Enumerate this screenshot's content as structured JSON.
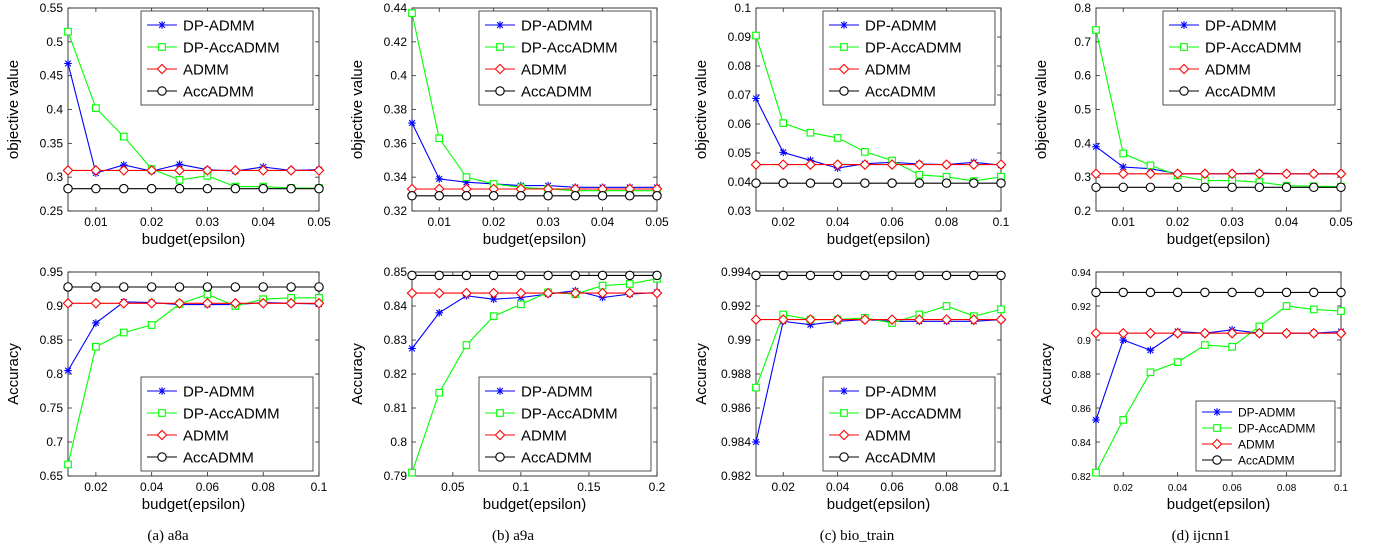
{
  "colors": {
    "DP-ADMM": "#0000ff",
    "DP-AccADMM": "#00ff00",
    "ADMM": "#ff0000",
    "AccADMM": "#000000"
  },
  "markers": {
    "DP-ADMM": "asterisk",
    "DP-AccADMM": "square",
    "ADMM": "diamond",
    "AccADMM": "circle"
  },
  "captions": [
    "(a)  a8a",
    "(b)  a9a",
    "(c)  bio_train",
    "(d)  ijcnn1"
  ],
  "chart_data": [
    {
      "type": "line",
      "title": "",
      "xlabel": "budget(epsilon)",
      "ylabel": "objective value",
      "xlim": [
        0.005,
        0.05
      ],
      "ylim": [
        0.25,
        0.55
      ],
      "xticks": [
        0.01,
        0.02,
        0.03,
        0.04,
        0.05
      ],
      "xtick_labels": [
        "0.01",
        "0.02",
        "0.03",
        "0.04",
        "0.05"
      ],
      "yticks": [
        0.25,
        0.3,
        0.35,
        0.4,
        0.45,
        0.5,
        0.55
      ],
      "ytick_labels": [
        "0.25",
        "0.3",
        "0.35",
        "0.4",
        "0.45",
        "0.5",
        "0.55"
      ],
      "legend": "top-right",
      "legend_font": 15,
      "grid": false,
      "x": [
        0.005,
        0.01,
        0.015,
        0.02,
        0.025,
        0.03,
        0.035,
        0.04,
        0.045,
        0.05
      ],
      "series": [
        {
          "name": "DP-ADMM",
          "values": [
            0.468,
            0.306,
            0.318,
            0.309,
            0.319,
            0.311,
            0.309,
            0.315,
            0.31,
            0.311
          ]
        },
        {
          "name": "DP-AccADMM",
          "values": [
            0.515,
            0.402,
            0.36,
            0.312,
            0.296,
            0.302,
            0.286,
            0.286,
            0.284,
            0.284
          ]
        },
        {
          "name": "ADMM",
          "values": [
            0.31,
            0.31,
            0.31,
            0.31,
            0.31,
            0.31,
            0.31,
            0.31,
            0.31,
            0.31
          ]
        },
        {
          "name": "AccADMM",
          "values": [
            0.283,
            0.283,
            0.283,
            0.283,
            0.283,
            0.283,
            0.283,
            0.283,
            0.283,
            0.283
          ]
        }
      ]
    },
    {
      "type": "line",
      "title": "",
      "xlabel": "budget(epsilon)",
      "ylabel": "objective value",
      "xlim": [
        0.005,
        0.05
      ],
      "ylim": [
        0.32,
        0.44
      ],
      "xticks": [
        0.01,
        0.02,
        0.03,
        0.04,
        0.05
      ],
      "xtick_labels": [
        "0.01",
        "0.02",
        "0.03",
        "0.04",
        "0.05"
      ],
      "yticks": [
        0.32,
        0.34,
        0.36,
        0.38,
        0.4,
        0.42,
        0.44
      ],
      "ytick_labels": [
        "0.32",
        "0.34",
        "0.36",
        "0.38",
        "0.4",
        "0.42",
        "0.44"
      ],
      "legend": "top-right",
      "legend_font": 15,
      "grid": false,
      "x": [
        0.005,
        0.01,
        0.015,
        0.02,
        0.025,
        0.03,
        0.035,
        0.04,
        0.045,
        0.05
      ],
      "series": [
        {
          "name": "DP-ADMM",
          "values": [
            0.372,
            0.339,
            0.337,
            0.336,
            0.335,
            0.335,
            0.334,
            0.334,
            0.334,
            0.334
          ]
        },
        {
          "name": "DP-AccADMM",
          "values": [
            0.437,
            0.363,
            0.34,
            0.336,
            0.334,
            0.333,
            0.332,
            0.332,
            0.332,
            0.332
          ]
        },
        {
          "name": "ADMM",
          "values": [
            0.333,
            0.333,
            0.333,
            0.333,
            0.333,
            0.333,
            0.333,
            0.333,
            0.333,
            0.333
          ]
        },
        {
          "name": "AccADMM",
          "values": [
            0.329,
            0.329,
            0.329,
            0.329,
            0.329,
            0.329,
            0.329,
            0.329,
            0.329,
            0.329
          ]
        }
      ]
    },
    {
      "type": "line",
      "title": "",
      "xlabel": "budget(epsilon)",
      "ylabel": "objective value",
      "xlim": [
        0.01,
        0.1
      ],
      "ylim": [
        0.03,
        0.1
      ],
      "xticks": [
        0.02,
        0.04,
        0.06,
        0.08,
        0.1
      ],
      "xtick_labels": [
        "0.02",
        "0.04",
        "0.06",
        "0.08",
        "0.1"
      ],
      "yticks": [
        0.03,
        0.04,
        0.05,
        0.06,
        0.07,
        0.08,
        0.09,
        0.1
      ],
      "ytick_labels": [
        "0.03",
        "0.04",
        "0.05",
        "0.06",
        "0.07",
        "0.08",
        "0.09",
        "0.1"
      ],
      "legend": "top-right",
      "legend_font": 15,
      "grid": false,
      "x": [
        0.01,
        0.02,
        0.03,
        0.04,
        0.05,
        0.06,
        0.07,
        0.08,
        0.09,
        0.1
      ],
      "series": [
        {
          "name": "DP-ADMM",
          "values": [
            0.0688,
            0.0502,
            0.0475,
            0.0448,
            0.0463,
            0.0468,
            0.0462,
            0.046,
            0.0468,
            0.0458
          ]
        },
        {
          "name": "DP-AccADMM",
          "values": [
            0.0905,
            0.0603,
            0.057,
            0.0552,
            0.0504,
            0.0474,
            0.0425,
            0.0418,
            0.0403,
            0.0418
          ]
        },
        {
          "name": "ADMM",
          "values": [
            0.046,
            0.046,
            0.046,
            0.046,
            0.046,
            0.046,
            0.046,
            0.046,
            0.046,
            0.046
          ]
        },
        {
          "name": "AccADMM",
          "values": [
            0.0396,
            0.0396,
            0.0396,
            0.0396,
            0.0396,
            0.0396,
            0.0396,
            0.0396,
            0.0396,
            0.0396
          ]
        }
      ]
    },
    {
      "type": "line",
      "title": "",
      "xlabel": "budget(epsilon)",
      "ylabel": "objective value",
      "xlim": [
        0.005,
        0.05
      ],
      "ylim": [
        0.2,
        0.8
      ],
      "xticks": [
        0.01,
        0.02,
        0.03,
        0.04,
        0.05
      ],
      "xtick_labels": [
        "0.01",
        "0.02",
        "0.03",
        "0.04",
        "0.05"
      ],
      "yticks": [
        0.2,
        0.3,
        0.4,
        0.5,
        0.6,
        0.7,
        0.8
      ],
      "ytick_labels": [
        "0.2",
        "0.3",
        "0.4",
        "0.5",
        "0.6",
        "0.7",
        "0.8"
      ],
      "legend": "top-right",
      "legend_font": 15,
      "grid": false,
      "x": [
        0.005,
        0.01,
        0.015,
        0.02,
        0.025,
        0.03,
        0.035,
        0.04,
        0.045,
        0.05
      ],
      "series": [
        {
          "name": "DP-ADMM",
          "values": [
            0.39,
            0.33,
            0.325,
            0.31,
            0.31,
            0.31,
            0.312,
            0.31,
            0.31,
            0.31
          ]
        },
        {
          "name": "DP-AccADMM",
          "values": [
            0.735,
            0.37,
            0.335,
            0.305,
            0.29,
            0.29,
            0.285,
            0.275,
            0.273,
            0.272
          ]
        },
        {
          "name": "ADMM",
          "values": [
            0.31,
            0.31,
            0.31,
            0.31,
            0.31,
            0.31,
            0.31,
            0.31,
            0.31,
            0.31
          ]
        },
        {
          "name": "AccADMM",
          "values": [
            0.27,
            0.27,
            0.27,
            0.27,
            0.27,
            0.27,
            0.27,
            0.27,
            0.27,
            0.27
          ]
        }
      ]
    },
    {
      "type": "line",
      "title": "",
      "xlabel": "budget(epsilon)",
      "ylabel": "Accuracy",
      "xlim": [
        0.01,
        0.1
      ],
      "ylim": [
        0.65,
        0.95
      ],
      "xticks": [
        0.02,
        0.04,
        0.06,
        0.08,
        0.1
      ],
      "xtick_labels": [
        "0.02",
        "0.04",
        "0.06",
        "0.08",
        "0.1"
      ],
      "yticks": [
        0.65,
        0.7,
        0.75,
        0.8,
        0.85,
        0.9,
        0.95
      ],
      "ytick_labels": [
        "0.65",
        "0.7",
        "0.75",
        "0.8",
        "0.85",
        "0.9",
        "0.95"
      ],
      "legend": "bottom-right",
      "legend_font": 15,
      "grid": false,
      "x": [
        0.01,
        0.02,
        0.03,
        0.04,
        0.05,
        0.06,
        0.07,
        0.08,
        0.09,
        0.1
      ],
      "series": [
        {
          "name": "DP-ADMM",
          "values": [
            0.805,
            0.875,
            0.906,
            0.905,
            0.902,
            0.902,
            0.902,
            0.905,
            0.904,
            0.903
          ]
        },
        {
          "name": "DP-AccADMM",
          "values": [
            0.667,
            0.84,
            0.861,
            0.872,
            0.903,
            0.917,
            0.9,
            0.91,
            0.912,
            0.912
          ]
        },
        {
          "name": "ADMM",
          "values": [
            0.904,
            0.904,
            0.904,
            0.904,
            0.904,
            0.904,
            0.904,
            0.904,
            0.904,
            0.904
          ]
        },
        {
          "name": "AccADMM",
          "values": [
            0.928,
            0.928,
            0.928,
            0.928,
            0.928,
            0.928,
            0.928,
            0.928,
            0.928,
            0.928
          ]
        }
      ]
    },
    {
      "type": "line",
      "title": "",
      "xlabel": "budget(epsilon)",
      "ylabel": "Accuracy",
      "xlim": [
        0.02,
        0.2
      ],
      "ylim": [
        0.79,
        0.85
      ],
      "xticks": [
        0.05,
        0.1,
        0.15,
        0.2
      ],
      "xtick_labels": [
        "0.05",
        "0.1",
        "0.15",
        "0.2"
      ],
      "yticks": [
        0.79,
        0.8,
        0.81,
        0.82,
        0.83,
        0.84,
        0.85
      ],
      "ytick_labels": [
        "0.79",
        "0.8",
        "0.81",
        "0.82",
        "0.83",
        "0.84",
        "0.85"
      ],
      "legend": "bottom-right",
      "legend_font": 15,
      "grid": false,
      "x": [
        0.02,
        0.04,
        0.06,
        0.08,
        0.1,
        0.12,
        0.14,
        0.16,
        0.18,
        0.2
      ],
      "series": [
        {
          "name": "DP-ADMM",
          "values": [
            0.8275,
            0.838,
            0.843,
            0.842,
            0.8425,
            0.8435,
            0.8445,
            0.8425,
            0.8435,
            0.844
          ]
        },
        {
          "name": "DP-AccADMM",
          "values": [
            0.791,
            0.8145,
            0.8285,
            0.837,
            0.8405,
            0.844,
            0.8435,
            0.846,
            0.8465,
            0.848
          ]
        },
        {
          "name": "ADMM",
          "values": [
            0.8438,
            0.8438,
            0.8438,
            0.8438,
            0.8438,
            0.8438,
            0.8438,
            0.8438,
            0.8438,
            0.8438
          ]
        },
        {
          "name": "AccADMM",
          "values": [
            0.849,
            0.849,
            0.849,
            0.849,
            0.849,
            0.849,
            0.849,
            0.849,
            0.849,
            0.849
          ]
        }
      ]
    },
    {
      "type": "line",
      "title": "",
      "xlabel": "budget(epsilon)",
      "ylabel": "Accuracy",
      "xlim": [
        0.01,
        0.1
      ],
      "ylim": [
        0.982,
        0.994
      ],
      "xticks": [
        0.02,
        0.04,
        0.06,
        0.08,
        0.1
      ],
      "xtick_labels": [
        "0.02",
        "0.04",
        "0.06",
        "0.08",
        "0.1"
      ],
      "yticks": [
        0.982,
        0.984,
        0.986,
        0.988,
        0.99,
        0.992,
        0.994
      ],
      "ytick_labels": [
        "0.982",
        "0.984",
        "0.986",
        "0.988",
        "0.99",
        "0.992",
        "0.994"
      ],
      "legend": "bottom-right",
      "legend_font": 15,
      "grid": false,
      "x": [
        0.01,
        0.02,
        0.03,
        0.04,
        0.05,
        0.06,
        0.07,
        0.08,
        0.09,
        0.1
      ],
      "series": [
        {
          "name": "DP-ADMM",
          "values": [
            0.984,
            0.9911,
            0.9909,
            0.9911,
            0.9912,
            0.9911,
            0.9911,
            0.9911,
            0.9911,
            0.9912
          ]
        },
        {
          "name": "DP-AccADMM",
          "values": [
            0.9872,
            0.9915,
            0.9912,
            0.9912,
            0.9913,
            0.991,
            0.9915,
            0.992,
            0.9914,
            0.9918
          ]
        },
        {
          "name": "ADMM",
          "values": [
            0.9912,
            0.9912,
            0.9912,
            0.9912,
            0.9912,
            0.9912,
            0.9912,
            0.9912,
            0.9912,
            0.9912
          ]
        },
        {
          "name": "AccADMM",
          "values": [
            0.9938,
            0.9938,
            0.9938,
            0.9938,
            0.9938,
            0.9938,
            0.9938,
            0.9938,
            0.9938,
            0.9938
          ]
        }
      ]
    },
    {
      "type": "line",
      "title": "",
      "xlabel": "budget(epsilon)",
      "ylabel": "Accuracy",
      "xlim": [
        0.01,
        0.1
      ],
      "ylim": [
        0.82,
        0.94
      ],
      "xticks": [
        0.02,
        0.04,
        0.06,
        0.08,
        0.1
      ],
      "xtick_labels": [
        "0.02",
        "0.04",
        "0.06",
        "0.08",
        "0.1"
      ],
      "yticks": [
        0.82,
        0.84,
        0.86,
        0.88,
        0.9,
        0.92,
        0.94
      ],
      "ytick_labels": [
        "0.82",
        "0.84",
        "0.86",
        "0.88",
        "0.9",
        "0.92",
        "0.94"
      ],
      "legend": "bottom-right",
      "legend_font": 12,
      "grid": false,
      "x": [
        0.01,
        0.02,
        0.03,
        0.04,
        0.05,
        0.06,
        0.07,
        0.08,
        0.09,
        0.1
      ],
      "series": [
        {
          "name": "DP-ADMM",
          "values": [
            0.853,
            0.9,
            0.894,
            0.905,
            0.904,
            0.906,
            0.904,
            0.904,
            0.904,
            0.905
          ]
        },
        {
          "name": "DP-AccADMM",
          "values": [
            0.822,
            0.853,
            0.881,
            0.887,
            0.897,
            0.896,
            0.908,
            0.92,
            0.918,
            0.917
          ]
        },
        {
          "name": "ADMM",
          "values": [
            0.904,
            0.904,
            0.904,
            0.904,
            0.904,
            0.904,
            0.904,
            0.904,
            0.904,
            0.904
          ]
        },
        {
          "name": "AccADMM",
          "values": [
            0.928,
            0.928,
            0.928,
            0.928,
            0.928,
            0.928,
            0.928,
            0.928,
            0.928,
            0.928
          ]
        }
      ]
    }
  ]
}
